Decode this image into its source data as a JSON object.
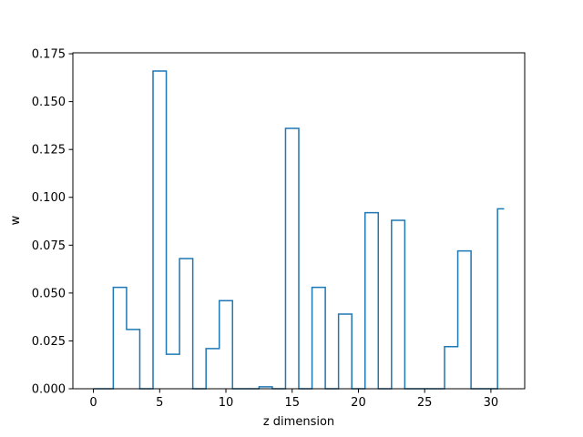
{
  "chart_data": {
    "type": "line",
    "drawstyle": "steps-mid",
    "title": "",
    "xlabel": "z dimension",
    "ylabel": "w",
    "xlim": [
      -1.55,
      32.55
    ],
    "ylim": [
      0,
      0.1755
    ],
    "xticks": [
      0,
      5,
      10,
      15,
      20,
      25,
      30
    ],
    "xtick_labels": [
      "0",
      "5",
      "10",
      "15",
      "20",
      "25",
      "30"
    ],
    "yticks": [
      0,
      0.025,
      0.05,
      0.075,
      0.1,
      0.125,
      0.15,
      0.175
    ],
    "ytick_labels": [
      "0.000",
      "0.025",
      "0.050",
      "0.075",
      "0.100",
      "0.125",
      "0.150",
      "0.175"
    ],
    "grid": false,
    "series": [
      {
        "color": "#1f77b4",
        "x": [
          0,
          1,
          2,
          3,
          4,
          5,
          6,
          7,
          8,
          9,
          10,
          11,
          12,
          13,
          14,
          15,
          16,
          17,
          18,
          19,
          20,
          21,
          22,
          23,
          24,
          25,
          26,
          27,
          28,
          29,
          30,
          31
        ],
        "y": [
          0,
          0,
          0.053,
          0.031,
          0,
          0.166,
          0.018,
          0.068,
          0,
          0.021,
          0.046,
          0,
          0,
          0.001,
          0,
          0.136,
          0,
          0.053,
          0,
          0.039,
          0,
          0.092,
          0,
          0.088,
          0,
          0,
          0,
          0.022,
          0.072,
          0,
          0,
          0.094
        ]
      }
    ]
  }
}
